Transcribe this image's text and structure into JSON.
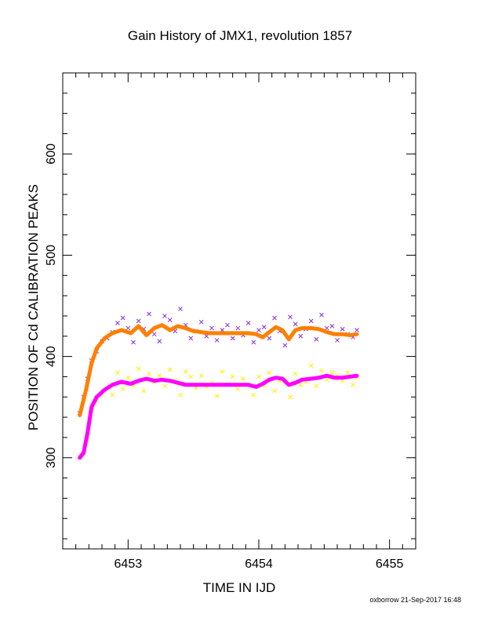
{
  "title": "Gain History of JMX1, revolution 1857",
  "credit": "oxborrow 21-Sep-2017 16:48",
  "chart_data": {
    "type": "scatter",
    "title": "Gain History of JMX1, revolution 1857",
    "xlabel": "TIME IN IJD",
    "ylabel": "POSITION OF Cd CALIBRATION PEAKS",
    "xlim": [
      6452.5,
      6455.2
    ],
    "ylim": [
      210,
      680
    ],
    "xticks": [
      6453,
      6454,
      6455
    ],
    "yticks": [
      300,
      400,
      500,
      600
    ],
    "grid": false,
    "series": [
      {
        "kind": "points",
        "color": "#8a2be2",
        "x": [
          6452.63,
          6452.66,
          6452.69,
          6452.72,
          6452.76,
          6452.8,
          6452.84,
          6452.88,
          6452.92,
          6452.96,
          6453.0,
          6453.04,
          6453.08,
          6453.12,
          6453.16,
          6453.2,
          6453.24,
          6453.28,
          6453.32,
          6453.36,
          6453.4,
          6453.44,
          6453.48,
          6453.52,
          6453.56,
          6453.6,
          6453.64,
          6453.68,
          6453.72,
          6453.76,
          6453.8,
          6453.84,
          6453.88,
          6453.92,
          6453.96,
          6454.0,
          6454.04,
          6454.08,
          6454.12,
          6454.16,
          6454.2,
          6454.24,
          6454.28,
          6454.32,
          6454.36,
          6454.4,
          6454.44,
          6454.48,
          6454.52,
          6454.56,
          6454.6,
          6454.64,
          6454.68,
          6454.72,
          6454.75
        ],
        "y": [
          344,
          360,
          378,
          396,
          405,
          415,
          418,
          424,
          433,
          438,
          428,
          414,
          435,
          427,
          442,
          422,
          415,
          440,
          436,
          425,
          447,
          431,
          418,
          425,
          434,
          420,
          428,
          416,
          426,
          431,
          418,
          428,
          421,
          433,
          414,
          426,
          429,
          418,
          438,
          425,
          411,
          439,
          432,
          420,
          427,
          435,
          417,
          441,
          428,
          430,
          416,
          427,
          422,
          419,
          426
        ]
      },
      {
        "kind": "points",
        "color": "#ffee00",
        "x": [
          6452.63,
          6452.66,
          6452.69,
          6452.72,
          6452.76,
          6452.8,
          6452.84,
          6452.88,
          6452.92,
          6452.96,
          6453.0,
          6453.04,
          6453.08,
          6453.12,
          6453.16,
          6453.2,
          6453.24,
          6453.28,
          6453.32,
          6453.36,
          6453.4,
          6453.44,
          6453.48,
          6453.52,
          6453.56,
          6453.6,
          6453.64,
          6453.68,
          6453.72,
          6453.76,
          6453.8,
          6453.84,
          6453.88,
          6453.92,
          6453.96,
          6454.0,
          6454.04,
          6454.08,
          6454.12,
          6454.16,
          6454.2,
          6454.24,
          6454.28,
          6454.32,
          6454.36,
          6454.4,
          6454.44,
          6454.48,
          6454.52,
          6454.56,
          6454.6,
          6454.64,
          6454.68,
          6454.72,
          6454.75
        ],
        "y": [
          301,
          305,
          318,
          347,
          356,
          363,
          368,
          362,
          384,
          368,
          379,
          371,
          388,
          366,
          383,
          375,
          381,
          371,
          387,
          376,
          362,
          385,
          380,
          369,
          381,
          370,
          374,
          361,
          385,
          372,
          380,
          368,
          378,
          372,
          362,
          380,
          371,
          384,
          366,
          376,
          378,
          360,
          383,
          372,
          375,
          391,
          371,
          386,
          377,
          384,
          381,
          376,
          384,
          372,
          379
        ]
      },
      {
        "kind": "trend",
        "color": "#ff7f00",
        "x": [
          6452.63,
          6452.68,
          6452.72,
          6452.76,
          6452.82,
          6452.88,
          6452.95,
          6453.02,
          6453.08,
          6453.14,
          6453.2,
          6453.26,
          6453.32,
          6453.38,
          6453.44,
          6453.5,
          6453.56,
          6453.62,
          6453.68,
          6453.74,
          6453.8,
          6453.86,
          6453.92,
          6453.98,
          6454.03,
          6454.08,
          6454.13,
          6454.18,
          6454.23,
          6454.28,
          6454.33,
          6454.4,
          6454.46,
          6454.52,
          6454.58,
          6454.64,
          6454.7,
          6454.75
        ],
        "y": [
          342,
          368,
          393,
          408,
          418,
          423,
          426,
          423,
          430,
          421,
          428,
          431,
          426,
          430,
          428,
          425,
          424,
          423,
          423,
          423,
          423,
          423,
          423,
          422,
          419,
          424,
          429,
          426,
          417,
          426,
          428,
          428,
          427,
          424,
          422,
          422,
          421,
          422
        ]
      },
      {
        "kind": "trend",
        "color": "#ff00ff",
        "x": [
          6452.63,
          6452.66,
          6452.69,
          6452.72,
          6452.76,
          6452.82,
          6452.88,
          6452.95,
          6453.02,
          6453.08,
          6453.14,
          6453.2,
          6453.26,
          6453.32,
          6453.38,
          6453.44,
          6453.5,
          6453.56,
          6453.62,
          6453.68,
          6453.74,
          6453.8,
          6453.86,
          6453.92,
          6453.98,
          6454.03,
          6454.08,
          6454.13,
          6454.18,
          6454.23,
          6454.28,
          6454.33,
          6454.4,
          6454.46,
          6454.52,
          6454.58,
          6454.64,
          6454.7,
          6454.75
        ],
        "y": [
          300,
          305,
          325,
          350,
          360,
          367,
          372,
          375,
          373,
          376,
          378,
          376,
          377,
          376,
          374,
          372,
          372,
          372,
          372,
          372,
          372,
          372,
          372,
          372,
          370,
          373,
          377,
          379,
          378,
          372,
          374,
          377,
          378,
          379,
          381,
          379,
          379,
          380,
          381
        ]
      }
    ]
  }
}
